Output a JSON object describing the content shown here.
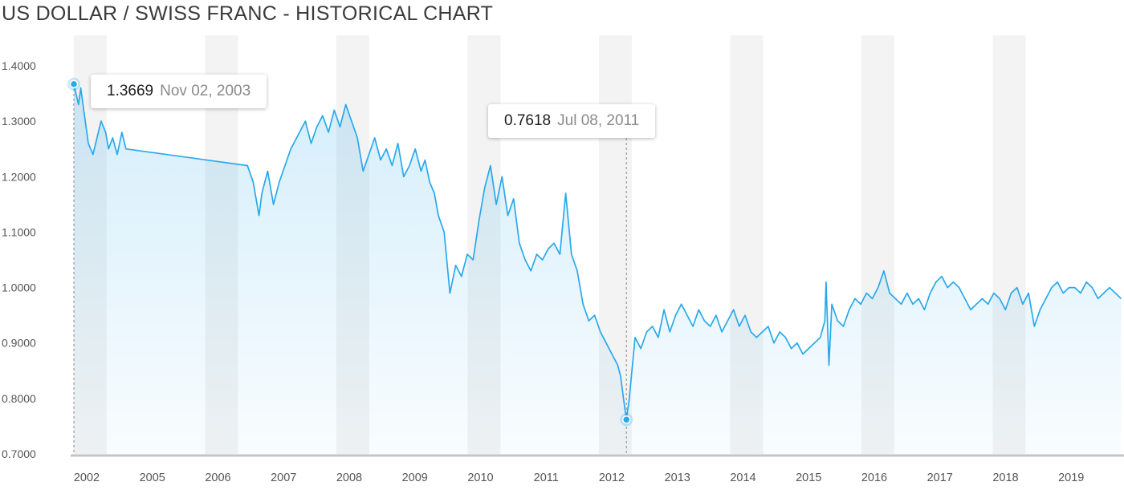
{
  "title": "US DOLLAR / SWISS FRANC - HISTORICAL CHART",
  "colors": {
    "line": "#29a9ec",
    "marker": "#29a9ec",
    "band": "#f3f3f3",
    "axis": "#c4c4c4",
    "crosshair": "#999999"
  },
  "chart_data": {
    "type": "line",
    "title": "US DOLLAR / SWISS FRANC - HISTORICAL CHART",
    "xlabel": "",
    "ylabel": "",
    "ylim": [
      0.7,
      1.4
    ],
    "xlim": [
      2002.05,
      2020.2
    ],
    "yticks": [
      "1.4000",
      "1.3000",
      "1.2000",
      "1.1000",
      "1.0000",
      "0.9000",
      "0.8000",
      "0.7000"
    ],
    "xticks": [
      "2002",
      "2005",
      "2006",
      "2007",
      "2008",
      "2009",
      "2010",
      "2011",
      "2012",
      "2013",
      "2014",
      "2015",
      "2016",
      "2017",
      "2018",
      "2019"
    ],
    "grid": "alternating vertical bands",
    "series": [
      {
        "x": [
          2002.05,
          2002.13,
          2002.17,
          2002.22,
          2002.3,
          2002.38,
          2002.45,
          2002.52,
          2002.6,
          2002.65,
          2002.72,
          2002.8,
          2002.88,
          2002.95,
          2005.05,
          2005.15,
          2005.25,
          2005.3,
          2005.4,
          2005.5,
          2005.6,
          2005.7,
          2005.8,
          2005.9,
          2006.05,
          2006.15,
          2006.25,
          2006.35,
          2006.45,
          2006.55,
          2006.65,
          2006.75,
          2006.85,
          2006.95,
          2007.05,
          2007.15,
          2007.25,
          2007.35,
          2007.45,
          2007.55,
          2007.65,
          2007.75,
          2007.85,
          2007.95,
          2008.05,
          2008.12,
          2008.2,
          2008.28,
          2008.35,
          2008.45,
          2008.55,
          2008.65,
          2008.75,
          2008.85,
          2008.95,
          2009.05,
          2009.15,
          2009.25,
          2009.35,
          2009.45,
          2009.55,
          2009.65,
          2009.75,
          2009.85,
          2009.95,
          2010.05,
          2010.15,
          2010.25,
          2010.35,
          2010.45,
          2010.55,
          2010.65,
          2010.75,
          2010.85,
          2010.95,
          2011.05,
          2011.15,
          2011.25,
          2011.35,
          2011.45,
          2011.5,
          2011.55,
          2011.6,
          2011.65,
          2011.75,
          2011.85,
          2011.95,
          2012.05,
          2012.15,
          2012.25,
          2012.35,
          2012.45,
          2012.55,
          2012.65,
          2012.75,
          2012.85,
          2012.95,
          2013.05,
          2013.15,
          2013.25,
          2013.35,
          2013.45,
          2013.55,
          2013.65,
          2013.75,
          2013.85,
          2013.95,
          2014.05,
          2014.15,
          2014.25,
          2014.35,
          2014.45,
          2014.55,
          2014.65,
          2014.75,
          2014.85,
          2014.95,
          2015.03,
          2015.05,
          2015.1,
          2015.15,
          2015.25,
          2015.35,
          2015.45,
          2015.55,
          2015.65,
          2015.75,
          2015.85,
          2015.95,
          2016.05,
          2016.15,
          2016.25,
          2016.35,
          2016.45,
          2016.55,
          2016.65,
          2016.75,
          2016.85,
          2016.95,
          2017.05,
          2017.15,
          2017.25,
          2017.35,
          2017.45,
          2017.55,
          2017.65,
          2017.75,
          2017.85,
          2017.95,
          2018.05,
          2018.15,
          2018.25,
          2018.35,
          2018.45,
          2018.55,
          2018.65,
          2018.75,
          2018.85,
          2018.95,
          2019.05,
          2019.15,
          2019.25,
          2019.35,
          2019.45,
          2019.55,
          2019.65,
          2019.75,
          2019.85,
          2019.95,
          2020.05,
          2020.15
        ],
        "y": [
          1.3669,
          1.33,
          1.36,
          1.32,
          1.26,
          1.24,
          1.27,
          1.3,
          1.28,
          1.25,
          1.27,
          1.24,
          1.28,
          1.25,
          1.22,
          1.19,
          1.13,
          1.17,
          1.21,
          1.15,
          1.19,
          1.22,
          1.25,
          1.27,
          1.3,
          1.26,
          1.29,
          1.31,
          1.28,
          1.32,
          1.29,
          1.33,
          1.3,
          1.27,
          1.21,
          1.24,
          1.27,
          1.23,
          1.25,
          1.22,
          1.26,
          1.2,
          1.22,
          1.25,
          1.21,
          1.23,
          1.19,
          1.17,
          1.13,
          1.1,
          0.99,
          1.04,
          1.02,
          1.06,
          1.05,
          1.12,
          1.18,
          1.22,
          1.15,
          1.2,
          1.13,
          1.16,
          1.08,
          1.05,
          1.03,
          1.06,
          1.05,
          1.07,
          1.08,
          1.06,
          1.17,
          1.06,
          1.03,
          0.97,
          0.94,
          0.95,
          0.92,
          0.9,
          0.88,
          0.86,
          0.84,
          0.8,
          0.7618,
          0.8,
          0.91,
          0.89,
          0.92,
          0.93,
          0.91,
          0.96,
          0.92,
          0.95,
          0.97,
          0.95,
          0.93,
          0.96,
          0.94,
          0.93,
          0.95,
          0.92,
          0.94,
          0.96,
          0.93,
          0.95,
          0.92,
          0.91,
          0.92,
          0.93,
          0.9,
          0.92,
          0.91,
          0.89,
          0.9,
          0.88,
          0.89,
          0.9,
          0.91,
          0.94,
          1.01,
          0.86,
          0.97,
          0.94,
          0.93,
          0.96,
          0.98,
          0.97,
          0.99,
          0.98,
          1.0,
          1.03,
          0.99,
          0.98,
          0.97,
          0.99,
          0.97,
          0.98,
          0.96,
          0.99,
          1.01,
          1.02,
          1.0,
          1.01,
          1.0,
          0.98,
          0.96,
          0.97,
          0.98,
          0.97,
          0.99,
          0.98,
          0.96,
          0.99,
          1.0,
          0.97,
          0.99,
          0.93,
          0.96,
          0.98,
          1.0,
          1.01,
          0.99,
          1.0,
          1.0,
          0.99,
          1.01,
          1.0,
          0.98,
          0.99,
          1.0,
          0.99,
          0.98
        ]
      }
    ],
    "highlights": [
      {
        "x": 2002.05,
        "y": 1.3669,
        "value": "1.3669",
        "date": "Nov 02, 2003"
      },
      {
        "x": 2011.6,
        "y": 0.7618,
        "value": "0.7618",
        "date": "Jul 08, 2011"
      }
    ]
  }
}
